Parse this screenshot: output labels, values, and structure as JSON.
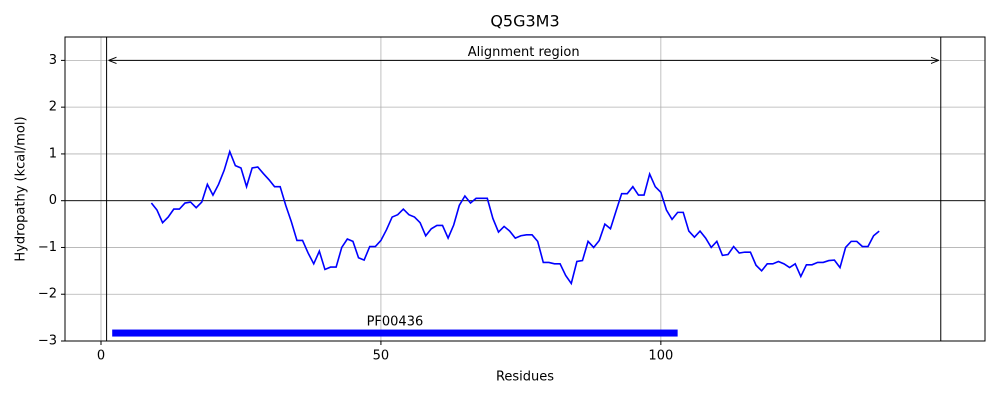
{
  "chart_data": {
    "type": "line",
    "title": "Q5G3M3",
    "xlabel": "Residues",
    "ylabel": "Hydropathy (kcal/mol)",
    "color": "#0000ff",
    "x": [
      9,
      10,
      11,
      12,
      13,
      14,
      15,
      16,
      17,
      18,
      19,
      20,
      21,
      22,
      23,
      24,
      25,
      26,
      27,
      28,
      29,
      30,
      31,
      32,
      33,
      34,
      35,
      36,
      37,
      38,
      39,
      40,
      41,
      42,
      43,
      44,
      45,
      46,
      47,
      48,
      49,
      50,
      51,
      52,
      53,
      54,
      55,
      56,
      57,
      58,
      59,
      60,
      61,
      62,
      63,
      64,
      65,
      66,
      67,
      68,
      69,
      70,
      71,
      72,
      73,
      74,
      75,
      76,
      77,
      78,
      79,
      80,
      81,
      82,
      83,
      84,
      85,
      86,
      87,
      88,
      89,
      90,
      91,
      92,
      93,
      94,
      95,
      96,
      97,
      98,
      99,
      100,
      101,
      102,
      103,
      104,
      105,
      106,
      107,
      108,
      109,
      110,
      111,
      112,
      113,
      114,
      115,
      116,
      117,
      118,
      119,
      120,
      121,
      122,
      123,
      124,
      125,
      126,
      127,
      128,
      129,
      130,
      131,
      132,
      133,
      134,
      135,
      136,
      137,
      138,
      139
    ],
    "values": [
      -0.05,
      -0.2,
      -0.47,
      -0.35,
      -0.18,
      -0.18,
      -0.05,
      -0.03,
      -0.15,
      -0.03,
      0.35,
      0.12,
      0.35,
      0.65,
      1.05,
      0.75,
      0.7,
      0.3,
      0.7,
      0.72,
      0.58,
      0.45,
      0.3,
      0.3,
      -0.1,
      -0.45,
      -0.85,
      -0.85,
      -1.12,
      -1.35,
      -1.08,
      -1.47,
      -1.42,
      -1.42,
      -1.0,
      -0.82,
      -0.87,
      -1.22,
      -1.27,
      -0.98,
      -0.98,
      -0.85,
      -0.62,
      -0.35,
      -0.3,
      -0.18,
      -0.3,
      -0.35,
      -0.47,
      -0.75,
      -0.6,
      -0.53,
      -0.53,
      -0.8,
      -0.52,
      -0.1,
      0.1,
      -0.05,
      0.05,
      0.05,
      0.05,
      -0.38,
      -0.67,
      -0.55,
      -0.65,
      -0.8,
      -0.75,
      -0.73,
      -0.73,
      -0.87,
      -1.32,
      -1.32,
      -1.35,
      -1.35,
      -1.6,
      -1.77,
      -1.3,
      -1.28,
      -0.87,
      -1.0,
      -0.85,
      -0.5,
      -0.6,
      -0.22,
      0.15,
      0.15,
      0.3,
      0.12,
      0.12,
      0.57,
      0.3,
      0.18,
      -0.2,
      -0.4,
      -0.25,
      -0.25,
      -0.65,
      -0.78,
      -0.65,
      -0.8,
      -1.0,
      -0.87,
      -1.17,
      -1.15,
      -0.98,
      -1.12,
      -1.1,
      -1.1,
      -1.38,
      -1.5,
      -1.35,
      -1.35,
      -1.3,
      -1.35,
      -1.43,
      -1.35,
      -1.62,
      -1.37,
      -1.37,
      -1.32,
      -1.32,
      -1.28,
      -1.27,
      -1.43,
      -1.0,
      -0.87,
      -0.87,
      -0.98,
      -0.98,
      -0.75,
      -0.65
    ],
    "xlim": [
      -6.43,
      157.9
    ],
    "ylim": [
      -3,
      3.5
    ],
    "xticks": [
      0,
      50,
      100
    ],
    "yticks": [
      {
        "value": -3,
        "label": "−3"
      },
      {
        "value": -2,
        "label": "−2"
      },
      {
        "value": -1,
        "label": "−1"
      },
      0,
      1,
      2,
      3
    ],
    "grid": true,
    "hline": 0,
    "alignment_region": {
      "label": "Alignment region",
      "start": 1,
      "end": 150,
      "y": 3
    },
    "domains": [
      {
        "label": "PF00436",
        "start": 2,
        "end": 103,
        "y": -2.83,
        "color": "#0000ff"
      }
    ]
  }
}
